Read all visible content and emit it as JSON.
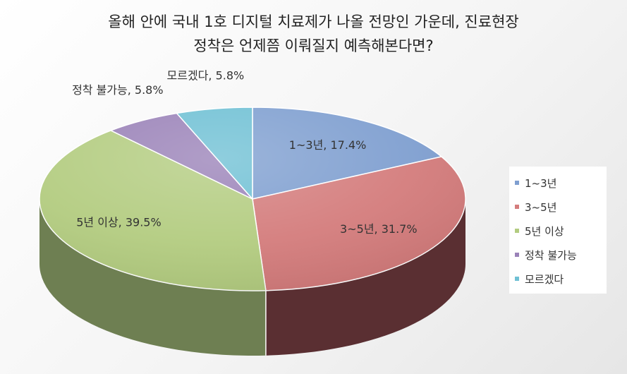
{
  "chart_data": {
    "type": "pie",
    "style": "3d",
    "title_lines": [
      "올해 안에 국내 1호 디지털 치료제가 나올 전망인 가운데, 진료현장",
      "정착은 언제쯤 이뤄질지 예측해본다면?"
    ],
    "legend_position": "right",
    "slices": [
      {
        "name": "1~3년",
        "value": 17.4,
        "label": "1~3년, 17.4%",
        "color": "#7f9fd0",
        "dark": "#4a6288"
      },
      {
        "name": "3~5년",
        "value": 31.7,
        "label": "3~5년, 31.7%",
        "color": "#d47c7c",
        "dark": "#5a2f32"
      },
      {
        "name": "5년 이상",
        "value": 39.5,
        "label": "5년 이상, 39.5%",
        "color": "#b3cc80",
        "dark": "#6e7f52"
      },
      {
        "name": "정착 불가능",
        "value": 5.8,
        "label": "정착 불가능, 5.8%",
        "color": "#9a82b8",
        "dark": "#5c4b73"
      },
      {
        "name": "모르겠다",
        "value": 5.8,
        "label": "모르겠다, 5.8%",
        "color": "#6fc0d4",
        "dark": "#3f7886"
      }
    ]
  }
}
